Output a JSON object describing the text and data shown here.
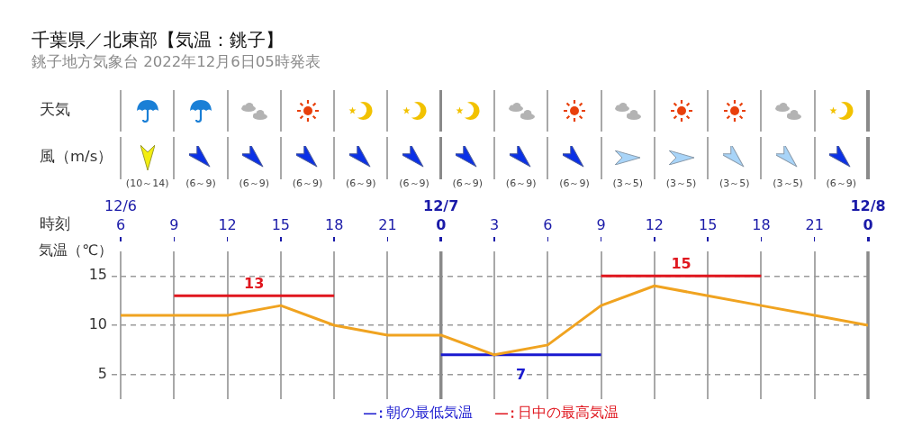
{
  "chart_data": {
    "type": "line",
    "title": "千葉県／北東部【気温：銚子】",
    "subtitle": "銚子地方気象台 2022年12月6日05時発表",
    "xlabel": "時刻",
    "ylabel": "気温（℃）",
    "x": [
      "2022-12-06T06:00",
      "2022-12-06T09:00",
      "2022-12-06T12:00",
      "2022-12-06T15:00",
      "2022-12-06T18:00",
      "2022-12-06T21:00",
      "2022-12-07T00:00",
      "2022-12-07T03:00",
      "2022-12-07T06:00",
      "2022-12-07T09:00",
      "2022-12-07T12:00",
      "2022-12-07T15:00",
      "2022-12-07T18:00",
      "2022-12-07T21:00",
      "2022-12-08T00:00"
    ],
    "series": [
      {
        "color": "#f0a320",
        "values": [
          11,
          11,
          11,
          12,
          10,
          9,
          9,
          7,
          8,
          12,
          14,
          13,
          12,
          11,
          10
        ]
      },
      {
        "name": "朝の最低気温",
        "color": "#1a1ad0",
        "x": [
          "2022-12-07T00:00",
          "2022-12-07T09:00"
        ],
        "values": [
          7,
          7
        ]
      },
      {
        "name": "日中の最高気温",
        "color": "#e0161e",
        "x": [
          "2022-12-06T09:00",
          "2022-12-06T18:00"
        ],
        "values": [
          13,
          13
        ]
      },
      {
        "color": "#e0161e",
        "x": [
          "2022-12-07T09:00",
          "2022-12-07T18:00"
        ],
        "values": [
          15,
          15
        ]
      }
    ],
    "xlim": [
      "2022-12-06T06:00",
      "2022-12-08T00:00"
    ],
    "xticks": [
      {
        "value": "2022-12-06T06:00",
        "label": "6"
      },
      {
        "value": "2022-12-06T09:00",
        "label": "9"
      },
      {
        "value": "2022-12-06T12:00",
        "label": "12"
      },
      {
        "value": "2022-12-06T15:00",
        "label": "15"
      },
      {
        "value": "2022-12-06T18:00",
        "label": "18"
      },
      {
        "value": "2022-12-06T21:00",
        "label": "21"
      },
      {
        "value": "2022-12-07T00:00",
        "label": "0"
      },
      {
        "value": "2022-12-07T03:00",
        "label": "3"
      },
      {
        "value": "2022-12-07T06:00",
        "label": "6"
      },
      {
        "value": "2022-12-07T09:00",
        "label": "9"
      },
      {
        "value": "2022-12-07T12:00",
        "label": "12"
      },
      {
        "value": "2022-12-07T15:00",
        "label": "15"
      },
      {
        "value": "2022-12-07T18:00",
        "label": "18"
      },
      {
        "value": "2022-12-07T21:00",
        "label": "21"
      },
      {
        "value": "2022-12-08T00:00",
        "label": "0"
      }
    ],
    "x2lim": [
      "2022-12-06T06:00",
      "2022-12-08T00:00"
    ],
    "x2ticks": [
      {
        "value": "2022-12-06T06:00",
        "label": "12/6"
      },
      {
        "value": "2022-12-07T00:00",
        "label": "12/7"
      },
      {
        "value": "2022-12-08T00:00",
        "label": "12/8"
      }
    ],
    "ylim": [
      2.5,
      17.5
    ],
    "yticks": [
      5,
      10,
      15
    ],
    "grid": true,
    "legend": "bottom",
    "marker": "none",
    "ref_lines": [
      {
        "axis": "x",
        "value": "2022-12-07T00:00",
        "color": "#8a8a8a"
      },
      {
        "axis": "x",
        "value": "2022-12-08T00:00",
        "color": "#8a8a8a"
      }
    ],
    "annotations": [
      "天気",
      "風（m/s）",
      "(10～14)",
      "(6～9)",
      "(6～9)",
      "(6～9)",
      "(6～9)",
      "(6～9)",
      "(6～9)",
      "(6～9)",
      "(6～9)",
      "(3～5)",
      "(3～5)",
      "(3～5)",
      "(3～5)",
      "(6～9)",
      {
        "text": "13",
        "x": "2022-12-06T13:30",
        "y": 13
      },
      {
        "text": "7",
        "x": "2022-12-07T04:30",
        "y": 7
      },
      {
        "text": "15",
        "x": "2022-12-07T13:30",
        "y": 15
      }
    ]
  }
}
